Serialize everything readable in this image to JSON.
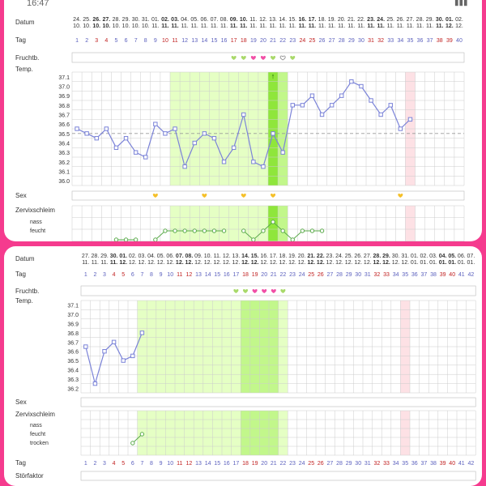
{
  "status_bar": {
    "time": "16:47",
    "signal_icon": "signal-icon"
  },
  "labels": {
    "datum": "Datum",
    "tag": "Tag",
    "fruchtbarkeit": "Fruchtb.",
    "temperatur": "Temp.",
    "sex": "Sex",
    "zervixschleim": "Zervixschleim",
    "nass": "nass",
    "feucht": "feucht",
    "trocken": "trocken",
    "stoerfaktor": "Störfaktor"
  },
  "colors": {
    "temp_line": "#7b83d8",
    "fertile_light": "#e5ffc4",
    "fertile_mid": "#c2f78b",
    "fertile_dark": "#8fe63b",
    "period": "#fde1e5",
    "heart_green": "#a9d96a",
    "heart_pink": "#f14fa6",
    "sex_heart": "#f5c02a",
    "red_day": "#c01e1e",
    "blue_day": "#5a5fbd",
    "background": "#f53b8e"
  },
  "top_chart": {
    "date_days": [
      "24.",
      "25.",
      "26.",
      "27.",
      "28.",
      "29.",
      "30.",
      "31.",
      "01.",
      "02.",
      "03.",
      "04.",
      "05.",
      "06.",
      "07.",
      "08.",
      "09.",
      "10.",
      "11.",
      "12.",
      "13.",
      "14.",
      "15.",
      "16.",
      "17.",
      "18.",
      "19.",
      "20.",
      "21.",
      "22.",
      "23.",
      "24.",
      "25.",
      "26.",
      "27.",
      "28.",
      "29.",
      "30.",
      "01.",
      "02."
    ],
    "date_months": [
      "10.",
      "10.",
      "10.",
      "10.",
      "10.",
      "10.",
      "10.",
      "10.",
      "11.",
      "11.",
      "11.",
      "11.",
      "11.",
      "11.",
      "11.",
      "11.",
      "11.",
      "11.",
      "11.",
      "11.",
      "11.",
      "11.",
      "11.",
      "11.",
      "11.",
      "11.",
      "11.",
      "11.",
      "11.",
      "11.",
      "11.",
      "11.",
      "11.",
      "11.",
      "11.",
      "11.",
      "11.",
      "11.",
      "12.",
      "12."
    ],
    "day_numbers": [
      "1",
      "2",
      "3",
      "4",
      "5",
      "6",
      "7",
      "8",
      "9",
      "10",
      "11",
      "12",
      "13",
      "14",
      "15",
      "16",
      "17",
      "18",
      "19",
      "20",
      "21",
      "22",
      "23",
      "24",
      "25",
      "26",
      "27",
      "28",
      "29",
      "30",
      "31",
      "32",
      "33",
      "34",
      "35",
      "36",
      "37",
      "38",
      "39",
      "40"
    ],
    "red_days": [
      3,
      4,
      10,
      11,
      17,
      18,
      24,
      25,
      31,
      32,
      38,
      39
    ],
    "bold_days": [
      3,
      4,
      10,
      11,
      17,
      18,
      24,
      25,
      31,
      32,
      38,
      39
    ],
    "temp_ticks": [
      "37.1",
      "37.0",
      "36.9",
      "36.8",
      "36.7",
      "36.6",
      "36.5",
      "36.4",
      "36.3",
      "36.2",
      "36.1",
      "36.0"
    ],
    "coverline": 36.5,
    "temps": [
      {
        "day": 1,
        "t": 36.55
      },
      {
        "day": 2,
        "t": 36.5
      },
      {
        "day": 3,
        "t": 36.45
      },
      {
        "day": 4,
        "t": 36.55
      },
      {
        "day": 5,
        "t": 36.35
      },
      {
        "day": 6,
        "t": 36.45
      },
      {
        "day": 7,
        "t": 36.3
      },
      {
        "day": 8,
        "t": 36.25
      },
      {
        "day": 9,
        "t": 36.6
      },
      {
        "day": 10,
        "t": 36.5
      },
      {
        "day": 11,
        "t": 36.55
      },
      {
        "day": 12,
        "t": 36.15
      },
      {
        "day": 13,
        "t": 36.4
      },
      {
        "day": 14,
        "t": 36.5
      },
      {
        "day": 15,
        "t": 36.45
      },
      {
        "day": 16,
        "t": 36.2
      },
      {
        "day": 17,
        "t": 36.35
      },
      {
        "day": 18,
        "t": 36.7
      },
      {
        "day": 19,
        "t": 36.2
      },
      {
        "day": 20,
        "t": 36.15
      },
      {
        "day": 21,
        "t": 36.5
      },
      {
        "day": 22,
        "t": 36.3
      },
      {
        "day": 23,
        "t": 36.8
      },
      {
        "day": 24,
        "t": 36.8
      },
      {
        "day": 25,
        "t": 36.9
      },
      {
        "day": 26,
        "t": 36.7
      },
      {
        "day": 27,
        "t": 36.8
      },
      {
        "day": 28,
        "t": 36.9
      },
      {
        "day": 29,
        "t": 37.05
      },
      {
        "day": 30,
        "t": 37.0
      },
      {
        "day": 31,
        "t": 36.85
      },
      {
        "day": 32,
        "t": 36.7
      },
      {
        "day": 33,
        "t": 36.8
      },
      {
        "day": 34,
        "t": 36.55
      },
      {
        "day": 35,
        "t": 36.65
      }
    ],
    "fertile_light_days": [
      11,
      20
    ],
    "fertile_mid_days": [
      21,
      22
    ],
    "fertile_dark_day": 21,
    "period_day": 35,
    "fertility_hearts": [
      {
        "day": 17,
        "c": "green"
      },
      {
        "day": 18,
        "c": "green"
      },
      {
        "day": 19,
        "c": "pink"
      },
      {
        "day": 20,
        "c": "pink"
      },
      {
        "day": 21,
        "c": "green"
      },
      {
        "day": 22,
        "c": "outline"
      },
      {
        "day": 23,
        "c": "green"
      }
    ],
    "sex_days": [
      9,
      14,
      18,
      21,
      34
    ],
    "mucus_levels": [
      {
        "day": 5,
        "l": 0
      },
      {
        "day": 6,
        "l": 0
      },
      {
        "day": 7,
        "l": 0
      },
      {
        "day": 9,
        "l": 0
      },
      {
        "day": 10,
        "l": 1
      },
      {
        "day": 11,
        "l": 1
      },
      {
        "day": 12,
        "l": 1
      },
      {
        "day": 13,
        "l": 1
      },
      {
        "day": 14,
        "l": 1
      },
      {
        "day": 15,
        "l": 1
      },
      {
        "day": 16,
        "l": 1
      },
      {
        "day": 18,
        "l": 1
      },
      {
        "day": 19,
        "l": 0
      },
      {
        "day": 20,
        "l": 1
      },
      {
        "day": 21,
        "l": 2
      },
      {
        "day": 22,
        "l": 1
      },
      {
        "day": 23,
        "l": 0
      },
      {
        "day": 24,
        "l": 1
      },
      {
        "day": 25,
        "l": 1
      },
      {
        "day": 26,
        "l": 1
      }
    ],
    "mucus_breaks": [
      8,
      17
    ]
  },
  "bottom_chart": {
    "date_days": [
      "27.",
      "28.",
      "29.",
      "30.",
      "01.",
      "02.",
      "03.",
      "04.",
      "05.",
      "06.",
      "07.",
      "08.",
      "09.",
      "10.",
      "11.",
      "12.",
      "13.",
      "14.",
      "15.",
      "16.",
      "17.",
      "18.",
      "19.",
      "20.",
      "21.",
      "22.",
      "23.",
      "24.",
      "25.",
      "26.",
      "27.",
      "28.",
      "29.",
      "30.",
      "31.",
      "01.",
      "02.",
      "03.",
      "04.",
      "05.",
      "06.",
      "07."
    ],
    "date_months": [
      "11.",
      "11.",
      "11.",
      "11.",
      "12.",
      "12.",
      "12.",
      "12.",
      "12.",
      "12.",
      "12.",
      "12.",
      "12.",
      "12.",
      "12.",
      "12.",
      "12.",
      "12.",
      "12.",
      "12.",
      "12.",
      "12.",
      "12.",
      "12.",
      "12.",
      "12.",
      "12.",
      "12.",
      "12.",
      "12.",
      "12.",
      "12.",
      "12.",
      "12.",
      "12.",
      "01.",
      "01.",
      "01.",
      "01.",
      "01.",
      "01.",
      "01."
    ],
    "day_numbers": [
      "1",
      "2",
      "3",
      "4",
      "5",
      "6",
      "7",
      "8",
      "9",
      "10",
      "11",
      "12",
      "13",
      "14",
      "15",
      "16",
      "17",
      "18",
      "19",
      "20",
      "21",
      "22",
      "23",
      "24",
      "25",
      "26",
      "27",
      "28",
      "29",
      "30",
      "31",
      "32",
      "33",
      "34",
      "35",
      "36",
      "37",
      "38",
      "39",
      "40",
      "41",
      "42"
    ],
    "red_days": [
      4,
      5,
      11,
      12,
      18,
      19,
      25,
      26,
      32,
      33,
      39,
      40
    ],
    "bold_days": [
      4,
      5,
      11,
      12,
      18,
      19,
      25,
      26,
      32,
      33,
      39,
      40
    ],
    "temp_ticks": [
      "37.1",
      "37.0",
      "36.9",
      "36.8",
      "36.7",
      "36.6",
      "36.5",
      "36.4",
      "36.3",
      "36.2"
    ],
    "temps": [
      {
        "day": 1,
        "t": 36.65
      },
      {
        "day": 2,
        "t": 36.25
      },
      {
        "day": 3,
        "t": 36.6
      },
      {
        "day": 4,
        "t": 36.7
      },
      {
        "day": 5,
        "t": 36.5
      },
      {
        "day": 6,
        "t": 36.55
      },
      {
        "day": 7,
        "t": 36.8
      }
    ],
    "fertile_light_days": [
      7,
      22
    ],
    "fertile_mid_days": [
      18,
      21
    ],
    "period_day": 35,
    "fertility_hearts": [
      {
        "day": 17,
        "c": "green"
      },
      {
        "day": 18,
        "c": "green"
      },
      {
        "day": 19,
        "c": "pink"
      },
      {
        "day": 20,
        "c": "pink"
      },
      {
        "day": 21,
        "c": "pink"
      },
      {
        "day": 22,
        "c": "green"
      }
    ],
    "mucus_levels": [
      {
        "day": 6,
        "l": 0
      },
      {
        "day": 7,
        "l": 1
      }
    ]
  }
}
